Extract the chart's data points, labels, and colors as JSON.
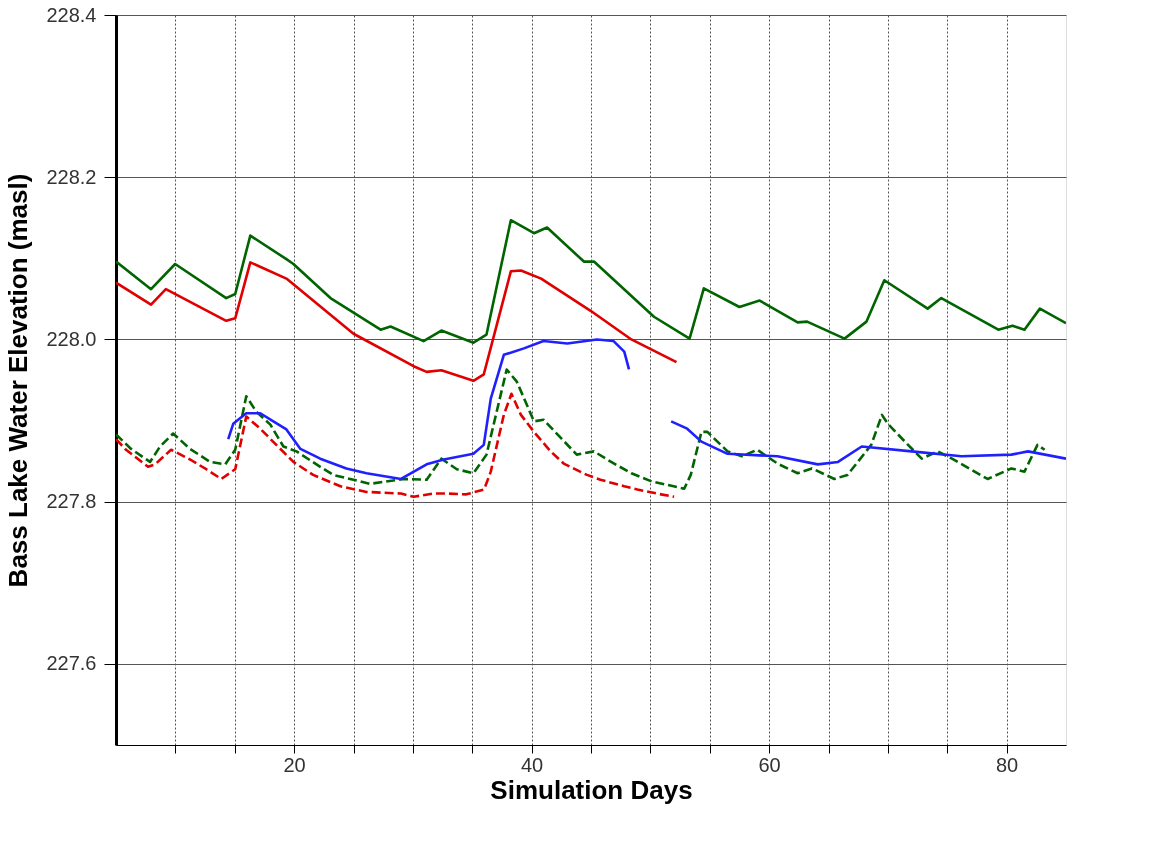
{
  "chart_data": {
    "type": "line",
    "xlabel": "Simulation Days",
    "ylabel": "Bass Lake Water Elevation (masl)",
    "xlim": [
      5,
      85
    ],
    "ylim": [
      227.5,
      228.4
    ],
    "xticks": [
      {
        "value": 10,
        "label": null
      },
      {
        "value": 15,
        "label": null
      },
      20,
      {
        "value": 25,
        "label": null
      },
      {
        "value": 30,
        "label": null
      },
      {
        "value": 35,
        "label": null
      },
      40,
      {
        "value": 45,
        "label": null
      },
      {
        "value": 50,
        "label": null
      },
      {
        "value": 55,
        "label": null
      },
      60,
      {
        "value": 65,
        "label": null
      },
      {
        "value": 70,
        "label": null
      },
      {
        "value": 75,
        "label": null
      },
      80
    ],
    "yticks": [
      227.6,
      227.8,
      {
        "value": 228.0,
        "label": "228.0"
      },
      228.2,
      228.4
    ],
    "grid": true,
    "line_style": "solid",
    "series": [
      {
        "color": "#006400",
        "x": [
          5,
          7.95,
          9.98,
          14.28,
          15.04,
          16.31,
          19.35,
          19.94,
          23.06,
          27.28,
          28.12,
          30.9,
          32.4,
          35.1,
          36.2,
          38.25,
          40.2,
          41.3,
          44.4,
          45.25,
          50.3,
          53.3,
          54.5,
          57.5,
          59.2,
          62.4,
          63.2,
          66.35,
          68.2,
          69.7,
          73.35,
          74.5,
          79.3,
          80.5,
          81.5,
          82.8,
          85
        ],
        "values": [
          228.096,
          228.062,
          228.093,
          228.051,
          228.056,
          228.128,
          228.099,
          228.093,
          228.051,
          228.012,
          228.016,
          227.998,
          228.011,
          227.996,
          228.006,
          228.147,
          228.131,
          228.138,
          228.096,
          228.096,
          228.028,
          228.001,
          228.063,
          228.04,
          228.048,
          228.021,
          228.022,
          228.001,
          228.022,
          228.073,
          228.038,
          228.051,
          228.012,
          228.017,
          228.012,
          228.038,
          228.02
        ]
      },
      {
        "color": "#e00000",
        "x": [
          5,
          7.95,
          9.2,
          14.28,
          15.04,
          16.31,
          19.35,
          25.0,
          30.06,
          31.16,
          32.4,
          35.1,
          35.97,
          38.25,
          39.1,
          40.8,
          45.0,
          48.4,
          52.2
        ],
        "values": [
          228.07,
          228.043,
          228.062,
          228.023,
          228.026,
          228.095,
          228.075,
          228.007,
          227.967,
          227.96,
          227.962,
          227.949,
          227.957,
          228.084,
          228.085,
          228.075,
          228.035,
          228.0,
          227.972
        ]
      },
      {
        "color": "#006400",
        "line_style": "dashed",
        "x": [
          5,
          6.27,
          7.87,
          8.71,
          9.81,
          11.24,
          12.93,
          14.2,
          15.04,
          15.97,
          16.81,
          18.0,
          19.1,
          20.2,
          22.2,
          23.3,
          26.4,
          29.2,
          31.16,
          32.4,
          33.7,
          35.1,
          36.2,
          37.9,
          38.75,
          40.2,
          41.0,
          42.5,
          43.8,
          45.25,
          46.7,
          48.4,
          50.1,
          52.85,
          53.4,
          54.3,
          54.8,
          56.5,
          57.7,
          59.0,
          60.7,
          62.4,
          63.6,
          65.5,
          66.6,
          68.6,
          69.5,
          70.0,
          71.7,
          72.85,
          74.2,
          75.4,
          78.4,
          80.4,
          81.5,
          82.6,
          83.2
        ],
        "values": [
          227.883,
          227.865,
          227.849,
          227.868,
          227.884,
          227.865,
          227.849,
          227.846,
          227.864,
          227.93,
          227.911,
          227.895,
          227.868,
          227.862,
          227.843,
          227.833,
          227.822,
          227.828,
          227.827,
          227.853,
          227.84,
          227.835,
          227.858,
          227.963,
          227.948,
          227.899,
          227.901,
          227.878,
          227.858,
          227.862,
          227.849,
          227.835,
          227.825,
          227.816,
          227.833,
          227.886,
          227.886,
          227.862,
          227.856,
          227.864,
          227.847,
          227.835,
          227.841,
          227.828,
          227.833,
          227.87,
          227.907,
          227.896,
          227.87,
          227.853,
          227.862,
          227.853,
          227.828,
          227.841,
          227.837,
          227.87,
          227.864
        ]
      },
      {
        "color": "#e00000",
        "line_style": "dashed",
        "x": [
          5,
          5.84,
          7.7,
          8.29,
          9.64,
          11.24,
          12.6,
          13.86,
          15.04,
          15.97,
          17.15,
          18.5,
          19.94,
          21.6,
          23.9,
          26.1,
          29.0,
          30.06,
          31.75,
          32.85,
          34.5,
          36.0,
          36.56,
          37.66,
          38.3,
          39.1,
          40.2,
          41.6,
          42.7,
          44.66,
          45.8,
          47.8,
          48.9,
          50.9,
          52.0
        ],
        "values": [
          227.877,
          227.864,
          227.843,
          227.846,
          227.864,
          227.852,
          227.84,
          227.828,
          227.84,
          227.905,
          227.89,
          227.87,
          227.849,
          227.833,
          227.819,
          227.812,
          227.81,
          227.806,
          227.81,
          227.81,
          227.809,
          227.815,
          227.837,
          227.907,
          227.933,
          227.907,
          227.886,
          227.862,
          227.847,
          227.833,
          227.827,
          227.819,
          227.815,
          227.809,
          227.806
        ]
      },
      {
        "color": "#2020ff",
        "x": [
          14.45,
          14.87,
          15.97,
          17.15,
          18.25,
          19.35,
          20.53,
          22.2,
          24.4,
          26.1,
          29.0,
          31.16,
          32.6,
          35.1,
          35.97,
          36.56,
          37.66,
          39.35,
          41.0,
          43.0,
          45.5,
          46.9,
          47.8,
          48.2,
          50,
          51.75,
          53.1,
          54.3,
          56.5,
          60.7,
          64.1,
          65.8,
          67.8,
          72.0,
          76.2,
          80.4,
          81.8,
          85
        ],
        "values": [
          227.877,
          227.896,
          227.909,
          227.909,
          227.899,
          227.889,
          227.865,
          227.853,
          227.841,
          227.835,
          227.828,
          227.846,
          227.852,
          227.859,
          227.87,
          227.927,
          227.981,
          227.989,
          227.998,
          227.995,
          228.0,
          227.998,
          227.985,
          227.963,
          null,
          227.899,
          227.89,
          227.874,
          227.859,
          227.856,
          227.846,
          227.849,
          227.868,
          227.862,
          227.856,
          227.858,
          227.862,
          227.853
        ]
      }
    ]
  }
}
